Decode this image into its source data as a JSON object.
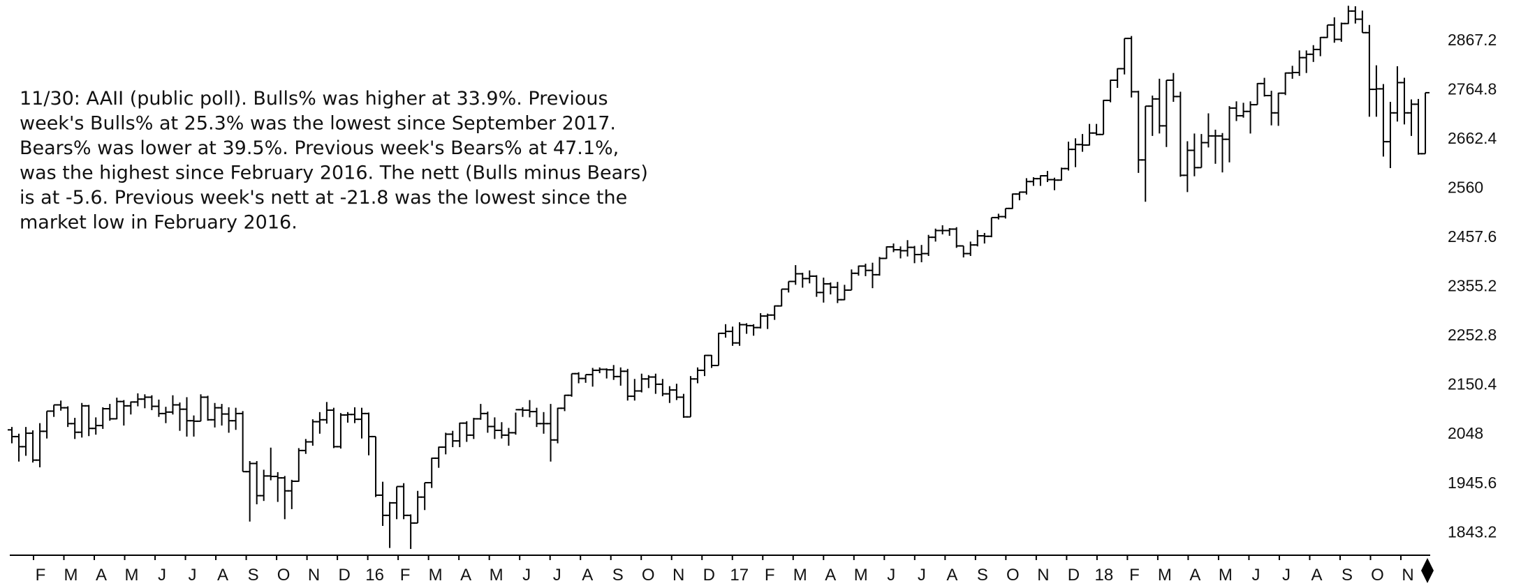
{
  "chart_data": {
    "type": "ohlc",
    "color": "#000000",
    "annotation_lines": [
      "11/30: AAII (public poll). Bulls% was higher at 33.9%. Previous",
      "week's Bulls% at 25.3% was the lowest since September 2017.",
      "Bears% was lower at 39.5%. Previous week's Bears% at 47.1%,",
      "was the highest since February 2016. The nett (Bulls minus Bears)",
      "is at -5.6. Previous week's nett at -21.8 was the lowest since the",
      "market low in February 2016."
    ],
    "x_labels": [
      "F",
      "M",
      "A",
      "M",
      "J",
      "J",
      "A",
      "S",
      "O",
      "N",
      "D",
      "16",
      "F",
      "M",
      "A",
      "M",
      "J",
      "J",
      "A",
      "S",
      "O",
      "N",
      "D",
      "17",
      "F",
      "M",
      "A",
      "M",
      "J",
      "J",
      "A",
      "S",
      "O",
      "N",
      "D",
      "18",
      "F",
      "M",
      "A",
      "M",
      "J",
      "J",
      "A",
      "S",
      "O",
      "N"
    ],
    "ylim": [
      1797,
      2953
    ],
    "yticks": [
      1843.2,
      1945.6,
      2048,
      2150.4,
      2252.8,
      2355.2,
      2457.6,
      2560,
      2662.4,
      2764.8,
      2867.2
    ],
    "bars": [
      [
        2058,
        2064,
        2030,
        2044
      ],
      [
        2044,
        2050,
        1992,
        2023
      ],
      [
        2023,
        2064,
        2004,
        2051
      ],
      [
        2051,
        2057,
        1990,
        1995
      ],
      [
        1995,
        2072,
        1980,
        2055
      ],
      [
        2055,
        2097,
        2040,
        2097
      ],
      [
        2097,
        2110,
        2085,
        2110
      ],
      [
        2110,
        2119,
        2098,
        2104
      ],
      [
        2104,
        2107,
        2064,
        2071
      ],
      [
        2071,
        2083,
        2039,
        2053
      ],
      [
        2053,
        2114,
        2042,
        2108
      ],
      [
        2108,
        2110,
        2045,
        2061
      ],
      [
        2061,
        2084,
        2048,
        2067
      ],
      [
        2067,
        2105,
        2060,
        2102
      ],
      [
        2102,
        2112,
        2077,
        2081
      ],
      [
        2081,
        2125,
        2080,
        2117
      ],
      [
        2117,
        2120,
        2067,
        2108
      ],
      [
        2108,
        2117,
        2090,
        2116
      ],
      [
        2116,
        2134,
        2107,
        2122
      ],
      [
        2122,
        2132,
        2103,
        2126
      ],
      [
        2126,
        2130,
        2099,
        2107
      ],
      [
        2107,
        2121,
        2085,
        2092
      ],
      [
        2092,
        2106,
        2072,
        2095
      ],
      [
        2095,
        2130,
        2090,
        2110
      ],
      [
        2110,
        2115,
        2056,
        2101
      ],
      [
        2101,
        2126,
        2044,
        2077
      ],
      [
        2077,
        2088,
        2044,
        2076
      ],
      [
        2076,
        2132,
        2076,
        2126
      ],
      [
        2126,
        2129,
        2077,
        2079
      ],
      [
        2079,
        2114,
        2063,
        2104
      ],
      [
        2104,
        2112,
        2067,
        2091
      ],
      [
        2091,
        2105,
        2052,
        2077
      ],
      [
        2077,
        2104,
        2058,
        2092
      ],
      [
        2092,
        2097,
        1971,
        1971
      ],
      [
        1971,
        1993,
        1867,
        1988
      ],
      [
        1988,
        1993,
        1903,
        1921
      ],
      [
        1921,
        1975,
        1910,
        1962
      ],
      [
        1962,
        2021,
        1953,
        1961
      ],
      [
        1961,
        1970,
        1908,
        1958
      ],
      [
        1958,
        1962,
        1872,
        1931
      ],
      [
        1931,
        1954,
        1893,
        1951
      ],
      [
        1951,
        2020,
        1950,
        2015
      ],
      [
        2015,
        2039,
        2008,
        2033
      ],
      [
        2033,
        2080,
        2025,
        2075
      ],
      [
        2075,
        2095,
        2050,
        2079
      ],
      [
        2079,
        2116,
        2071,
        2099
      ],
      [
        2099,
        2104,
        2020,
        2023
      ],
      [
        2023,
        2093,
        2019,
        2089
      ],
      [
        2089,
        2095,
        2073,
        2090
      ],
      [
        2090,
        2105,
        2072,
        2080
      ],
      [
        2080,
        2104,
        2040,
        2092
      ],
      [
        2092,
        2094,
        2005,
        2044
      ],
      [
        2044,
        2044,
        1918,
        1922
      ],
      [
        1922,
        1950,
        1858,
        1880
      ],
      [
        1880,
        1908,
        1812,
        1906
      ],
      [
        1906,
        1940,
        1872,
        1940
      ],
      [
        1940,
        1947,
        1872,
        1880
      ],
      [
        1880,
        1882,
        1810,
        1864
      ],
      [
        1864,
        1931,
        1864,
        1918
      ],
      [
        1918,
        1948,
        1891,
        1948
      ],
      [
        1948,
        2000,
        1937,
        1999
      ],
      [
        1999,
        2023,
        1979,
        2022
      ],
      [
        2022,
        2052,
        2007,
        2049
      ],
      [
        2049,
        2056,
        2022,
        2035
      ],
      [
        2035,
        2073,
        2022,
        2072
      ],
      [
        2072,
        2076,
        2033,
        2047
      ],
      [
        2047,
        2083,
        2039,
        2081
      ],
      [
        2081,
        2112,
        2079,
        2092
      ],
      [
        2092,
        2096,
        2052,
        2065
      ],
      [
        2065,
        2084,
        2039,
        2057
      ],
      [
        2057,
        2074,
        2040,
        2047
      ],
      [
        2047,
        2062,
        2025,
        2052
      ],
      [
        2052,
        2094,
        2048,
        2100
      ],
      [
        2100,
        2105,
        2085,
        2099
      ],
      [
        2099,
        2120,
        2084,
        2096
      ],
      [
        2096,
        2104,
        2064,
        2071
      ],
      [
        2071,
        2095,
        2050,
        2071
      ],
      [
        2071,
        2112,
        1992,
        2037
      ],
      [
        2037,
        2104,
        2030,
        2103
      ],
      [
        2103,
        2131,
        2097,
        2130
      ],
      [
        2130,
        2175,
        2127,
        2175
      ],
      [
        2175,
        2178,
        2155,
        2165
      ],
      [
        2165,
        2173,
        2156,
        2173
      ],
      [
        2173,
        2187,
        2148,
        2182
      ],
      [
        2182,
        2188,
        2176,
        2184
      ],
      [
        2184,
        2186,
        2165,
        2183
      ],
      [
        2183,
        2193,
        2162,
        2169
      ],
      [
        2169,
        2188,
        2150,
        2180
      ],
      [
        2180,
        2185,
        2119,
        2128
      ],
      [
        2128,
        2164,
        2119,
        2139
      ],
      [
        2139,
        2175,
        2136,
        2164
      ],
      [
        2164,
        2172,
        2145,
        2168
      ],
      [
        2168,
        2175,
        2133,
        2153
      ],
      [
        2153,
        2164,
        2128,
        2133
      ],
      [
        2133,
        2149,
        2114,
        2141
      ],
      [
        2141,
        2154,
        2120,
        2126
      ],
      [
        2126,
        2133,
        2083,
        2085
      ],
      [
        2085,
        2170,
        2085,
        2164
      ],
      [
        2164,
        2188,
        2155,
        2182
      ],
      [
        2182,
        2214,
        2170,
        2213
      ],
      [
        2213,
        2214,
        2187,
        2192
      ],
      [
        2192,
        2260,
        2192,
        2259
      ],
      [
        2259,
        2278,
        2250,
        2263
      ],
      [
        2263,
        2273,
        2233,
        2239
      ],
      [
        2239,
        2282,
        2233,
        2277
      ],
      [
        2277,
        2280,
        2258,
        2275
      ],
      [
        2275,
        2278,
        2254,
        2271
      ],
      [
        2271,
        2301,
        2269,
        2295
      ],
      [
        2295,
        2300,
        2268,
        2297
      ],
      [
        2297,
        2317,
        2287,
        2316
      ],
      [
        2316,
        2351,
        2315,
        2351
      ],
      [
        2351,
        2367,
        2344,
        2367
      ],
      [
        2367,
        2401,
        2360,
        2383
      ],
      [
        2383,
        2385,
        2354,
        2373
      ],
      [
        2373,
        2390,
        2363,
        2378
      ],
      [
        2378,
        2380,
        2335,
        2344
      ],
      [
        2344,
        2375,
        2323,
        2362
      ],
      [
        2362,
        2365,
        2340,
        2355
      ],
      [
        2355,
        2366,
        2322,
        2329
      ],
      [
        2329,
        2360,
        2328,
        2349
      ],
      [
        2349,
        2392,
        2349,
        2384
      ],
      [
        2384,
        2400,
        2379,
        2399
      ],
      [
        2399,
        2404,
        2378,
        2390
      ],
      [
        2390,
        2406,
        2353,
        2381
      ],
      [
        2381,
        2418,
        2379,
        2415
      ],
      [
        2415,
        2440,
        2414,
        2439
      ],
      [
        2439,
        2446,
        2428,
        2433
      ],
      [
        2433,
        2440,
        2415,
        2431
      ],
      [
        2431,
        2453,
        2419,
        2438
      ],
      [
        2438,
        2441,
        2405,
        2423
      ],
      [
        2423,
        2443,
        2407,
        2425
      ],
      [
        2425,
        2464,
        2420,
        2459
      ],
      [
        2459,
        2477,
        2450,
        2473
      ],
      [
        2473,
        2484,
        2465,
        2473
      ],
      [
        2473,
        2478,
        2462,
        2476
      ],
      [
        2476,
        2480,
        2437,
        2441
      ],
      [
        2441,
        2441,
        2417,
        2425
      ],
      [
        2425,
        2450,
        2420,
        2443
      ],
      [
        2443,
        2474,
        2440,
        2462
      ],
      [
        2462,
        2468,
        2446,
        2461
      ],
      [
        2461,
        2500,
        2459,
        2500
      ],
      [
        2500,
        2508,
        2496,
        2502
      ],
      [
        2502,
        2519,
        2498,
        2519
      ],
      [
        2519,
        2550,
        2518,
        2549
      ],
      [
        2549,
        2554,
        2536,
        2553
      ],
      [
        2553,
        2582,
        2548,
        2575
      ],
      [
        2575,
        2584,
        2566,
        2581
      ],
      [
        2581,
        2588,
        2566,
        2587
      ],
      [
        2587,
        2597,
        2574,
        2579
      ],
      [
        2579,
        2583,
        2557,
        2578
      ],
      [
        2578,
        2604,
        2577,
        2602
      ],
      [
        2602,
        2658,
        2598,
        2642
      ],
      [
        2642,
        2665,
        2605,
        2652
      ],
      [
        2652,
        2674,
        2637,
        2651
      ],
      [
        2651,
        2695,
        2650,
        2676
      ],
      [
        2676,
        2695,
        2671,
        2673
      ],
      [
        2673,
        2745,
        2673,
        2744
      ],
      [
        2744,
        2787,
        2740,
        2786
      ],
      [
        2786,
        2811,
        2770,
        2810
      ],
      [
        2810,
        2873,
        2798,
        2873
      ],
      [
        2873,
        2878,
        2750,
        2762
      ],
      [
        2762,
        2764,
        2593,
        2620
      ],
      [
        2620,
        2732,
        2533,
        2732
      ],
      [
        2732,
        2754,
        2670,
        2747
      ],
      [
        2747,
        2789,
        2675,
        2691
      ],
      [
        2691,
        2786,
        2647,
        2786
      ],
      [
        2786,
        2801,
        2741,
        2752
      ],
      [
        2752,
        2762,
        2585,
        2588
      ],
      [
        2588,
        2659,
        2553,
        2640
      ],
      [
        2640,
        2675,
        2586,
        2604
      ],
      [
        2604,
        2674,
        2604,
        2656
      ],
      [
        2656,
        2717,
        2646,
        2670
      ],
      [
        2670,
        2683,
        2612,
        2670
      ],
      [
        2670,
        2676,
        2594,
        2663
      ],
      [
        2663,
        2732,
        2615,
        2728
      ],
      [
        2728,
        2742,
        2701,
        2712
      ],
      [
        2712,
        2739,
        2708,
        2721
      ],
      [
        2721,
        2742,
        2675,
        2735
      ],
      [
        2735,
        2780,
        2735,
        2779
      ],
      [
        2779,
        2791,
        2752,
        2754
      ],
      [
        2754,
        2764,
        2692,
        2718
      ],
      [
        2718,
        2760,
        2691,
        2759
      ],
      [
        2759,
        2802,
        2755,
        2801
      ],
      [
        2801,
        2816,
        2789,
        2802
      ],
      [
        2802,
        2848,
        2795,
        2833
      ],
      [
        2833,
        2848,
        2801,
        2840
      ],
      [
        2840,
        2859,
        2824,
        2850
      ],
      [
        2850,
        2876,
        2836,
        2875
      ],
      [
        2875,
        2901,
        2874,
        2901
      ],
      [
        2901,
        2917,
        2864,
        2871
      ],
      [
        2871,
        2906,
        2866,
        2904
      ],
      [
        2904,
        2941,
        2903,
        2930
      ],
      [
        2930,
        2940,
        2904,
        2913
      ],
      [
        2913,
        2931,
        2885,
        2885
      ],
      [
        2885,
        2901,
        2710,
        2767
      ],
      [
        2767,
        2817,
        2710,
        2768
      ],
      [
        2768,
        2778,
        2627,
        2658
      ],
      [
        2658,
        2741,
        2603,
        2718
      ],
      [
        2718,
        2815,
        2700,
        2781
      ],
      [
        2781,
        2791,
        2694,
        2718
      ],
      [
        2718,
        2746,
        2670,
        2736
      ],
      [
        2736,
        2747,
        2631,
        2633
      ],
      [
        2633,
        2760,
        2633,
        2760
      ]
    ]
  }
}
